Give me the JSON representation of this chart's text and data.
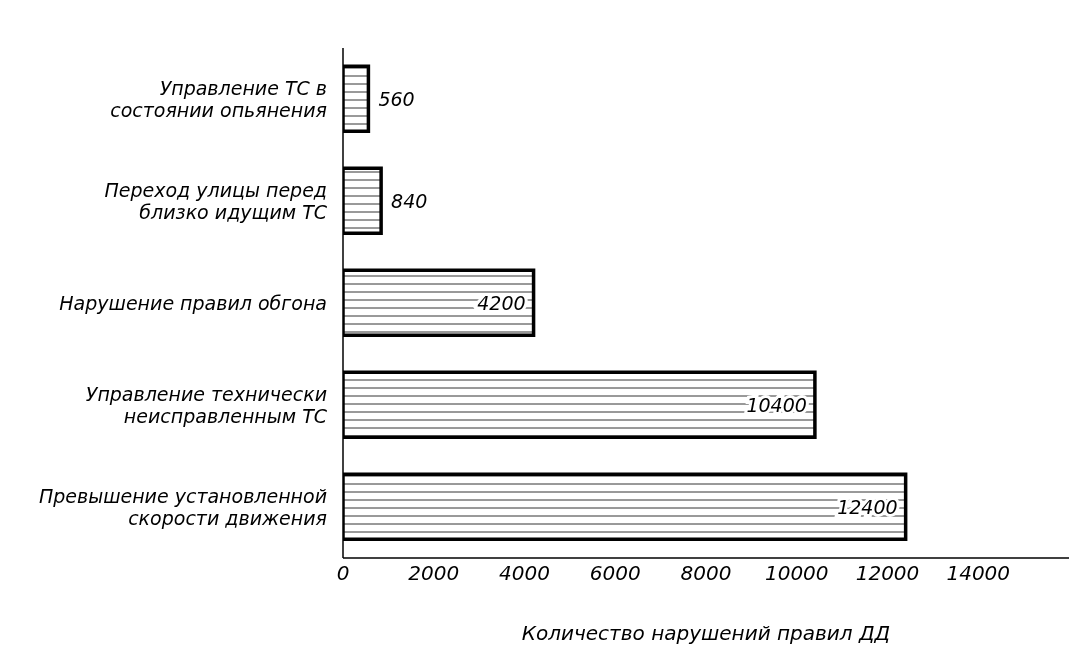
{
  "chart_data": {
    "type": "bar",
    "orientation": "horizontal",
    "categories": [
      "Управление ТС в состоянии опьянения",
      "Переход улицы перед близко идущим ТС",
      "Нарушение правил обгона",
      "Управление технически неисправленным ТС",
      "Превышение установленной скорости движения"
    ],
    "values": [
      560,
      840,
      4200,
      10400,
      12400
    ],
    "color": "#000000",
    "xlim": [
      0,
      16000
    ],
    "xticks": [
      0,
      2000,
      4000,
      6000,
      8000,
      10000,
      12000,
      14000
    ],
    "xlabel": "Количество нарушений правил ДД",
    "data_labels": true,
    "grid": false
  }
}
